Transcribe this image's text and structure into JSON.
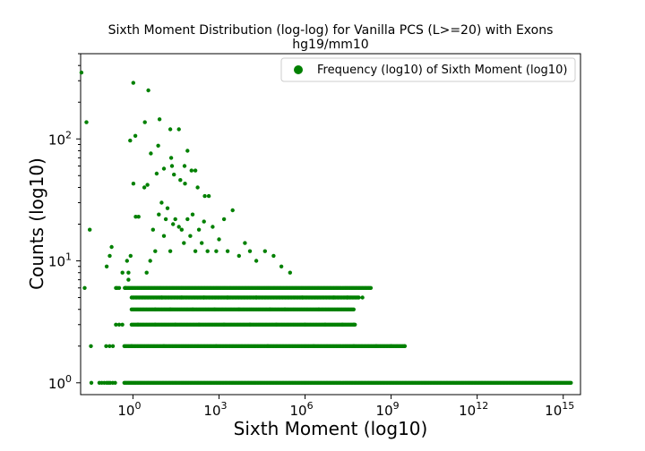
{
  "chart_data": {
    "type": "scatter",
    "title_line1": "Sixth Moment Distribution (log-log) for Vanilla PCS (L>=20) with Exons",
    "title_line2": "hg19/mm10",
    "xlabel": "Sixth Moment (log10)",
    "ylabel": "Counts (log10)",
    "x_scale": "log",
    "y_scale": "log",
    "xlim": [
      0.015,
      4000000000000000.0
    ],
    "ylim": [
      0.8,
      500
    ],
    "grid": false,
    "legend": {
      "placement": "top-right",
      "label": "Frequency (log10) of Sixth Moment (log10)"
    },
    "color": "#008000",
    "x_ticks": [
      {
        "base": "10",
        "exp": "0",
        "value": 1
      },
      {
        "base": "10",
        "exp": "3",
        "value": 1000
      },
      {
        "base": "10",
        "exp": "6",
        "value": 1000000
      },
      {
        "base": "10",
        "exp": "9",
        "value": 1000000000
      },
      {
        "base": "10",
        "exp": "12",
        "value": 1000000000000
      },
      {
        "base": "10",
        "exp": "15",
        "value": 1000000000000000
      }
    ],
    "y_ticks": [
      {
        "base": "10",
        "exp": "0",
        "value": 1
      },
      {
        "base": "10",
        "exp": "1",
        "value": 10
      },
      {
        "base": "10",
        "exp": "2",
        "value": 100
      }
    ],
    "series": [
      {
        "name": "Frequency (log10) of Sixth Moment (log10)",
        "points": [
          [
            0.016,
            350
          ],
          [
            0.0239,
            137
          ],
          [
            0.0207,
            6
          ],
          [
            0.0312,
            18
          ],
          [
            0.0342,
            2
          ],
          [
            0.0356,
            1
          ],
          [
            0.0674,
            1
          ],
          [
            0.0818,
            1
          ],
          [
            0.1,
            1
          ],
          [
            0.1217,
            1
          ],
          [
            0.14,
            1
          ],
          [
            0.1612,
            1
          ],
          [
            0.1962,
            1
          ],
          [
            0.2389,
            1
          ],
          [
            0.1162,
            2
          ],
          [
            0.1525,
            2
          ],
          [
            0.2,
            2
          ],
          [
            0.2541,
            3
          ],
          [
            0.3302,
            3
          ],
          [
            0.4288,
            3
          ],
          [
            0.1216,
            9
          ],
          [
            0.1558,
            11
          ],
          [
            0.18,
            13
          ],
          [
            0.2541,
            6
          ],
          [
            0.2848,
            6
          ],
          [
            0.33,
            6
          ],
          [
            0.52,
            6
          ],
          [
            0.43,
            8
          ],
          [
            0.62,
            10
          ],
          [
            0.7,
            7
          ],
          [
            0.83,
            11
          ],
          [
            1.25,
            23
          ],
          [
            1.57,
            23
          ],
          [
            2.5,
            40
          ],
          [
            0.7,
            8
          ],
          [
            0.554,
            6
          ],
          [
            0.8,
            97
          ],
          [
            1.03,
            288
          ],
          [
            1.04,
            43
          ],
          [
            1.21,
            106
          ],
          [
            3.44,
            250
          ],
          [
            2.6,
            137
          ],
          [
            3.2,
            42
          ],
          [
            4.2,
            76
          ],
          [
            8.44,
            145
          ],
          [
            6.7,
            52
          ],
          [
            7.6,
            88
          ],
          [
            12.0,
            57
          ],
          [
            20.0,
            120
          ],
          [
            21.5,
            70
          ],
          [
            23.0,
            60
          ],
          [
            27.0,
            51
          ],
          [
            40.0,
            120
          ],
          [
            45.0,
            46
          ],
          [
            63.0,
            60
          ],
          [
            65.0,
            43
          ],
          [
            80.0,
            80
          ],
          [
            110.0,
            55
          ],
          [
            150.0,
            55
          ],
          [
            180.0,
            40
          ],
          [
            320.0,
            34
          ],
          [
            440.0,
            34
          ],
          [
            3.0,
            8
          ],
          [
            4.0,
            10
          ],
          [
            5.0,
            18
          ],
          [
            6.0,
            12
          ],
          [
            8.0,
            24
          ],
          [
            10.0,
            30
          ],
          [
            12.0,
            16
          ],
          [
            14.0,
            22
          ],
          [
            16.0,
            27
          ],
          [
            20.0,
            12
          ],
          [
            25.0,
            20
          ],
          [
            30.0,
            22
          ],
          [
            40.0,
            19
          ],
          [
            50.0,
            18
          ],
          [
            60.0,
            14
          ],
          [
            80.0,
            22
          ],
          [
            100.0,
            16
          ],
          [
            120.0,
            24
          ],
          [
            150.0,
            12
          ],
          [
            200.0,
            18
          ],
          [
            250.0,
            14
          ],
          [
            300.0,
            21
          ],
          [
            400.0,
            12
          ],
          [
            600.0,
            19
          ],
          [
            800.0,
            12
          ],
          [
            1000.0,
            15
          ],
          [
            1500.0,
            22
          ],
          [
            2000.0,
            12
          ],
          [
            3000.0,
            26
          ],
          [
            5000.0,
            11
          ],
          [
            8000.0,
            14
          ],
          [
            12000.0,
            12
          ],
          [
            20000.0,
            10
          ],
          [
            40000.0,
            12
          ],
          [
            80000.0,
            11
          ],
          [
            150000.0,
            9
          ],
          [
            300000.0,
            8
          ],
          [
            6.0,
            4
          ],
          [
            10.0,
            5
          ],
          [
            20.0,
            4
          ],
          [
            50.0,
            5
          ],
          [
            120.0,
            4
          ],
          [
            300.0,
            5
          ],
          [
            700.0,
            4
          ],
          [
            2000.0,
            5
          ],
          [
            5000.0,
            4
          ],
          [
            20000.0,
            5
          ],
          [
            60000.0,
            4
          ],
          [
            200000.0,
            4
          ],
          [
            800000.0,
            5
          ],
          [
            3000000.0,
            4
          ],
          [
            10000000.0,
            5
          ],
          [
            30000000.0,
            5
          ],
          [
            100000000.0,
            5
          ],
          [
            1.5,
            3
          ],
          [
            6.0,
            3
          ],
          [
            30.0,
            3
          ],
          [
            200.0,
            3
          ],
          [
            1500.0,
            3
          ],
          [
            12000.0,
            3
          ],
          [
            100000.0,
            3
          ],
          [
            1000000.0,
            3
          ],
          [
            5000000.0,
            3
          ],
          [
            20000000.0,
            3
          ],
          [
            50000000.0,
            3
          ],
          [
            0.9,
            2
          ],
          [
            12.0,
            2
          ],
          [
            800.0,
            2
          ],
          [
            50000.0,
            2
          ],
          [
            2000000.0,
            2
          ],
          [
            50000000.0,
            2
          ],
          [
            300000000.0,
            2
          ],
          [
            1000000000.0,
            2
          ],
          [
            3000000000.0,
            2
          ]
        ]
      }
    ],
    "bands": [
      {
        "y": 6,
        "x_from": 0.55,
        "x_to": 200000000,
        "dense": true
      },
      {
        "y": 5,
        "x_from": 0.9,
        "x_to": 80000000,
        "dense": true
      },
      {
        "y": 4,
        "x_from": 0.9,
        "x_to": 50000000,
        "dense": true
      },
      {
        "y": 3,
        "x_from": 0.9,
        "x_to": 60000000,
        "dense": true
      },
      {
        "y": 2,
        "x_from": 0.5,
        "x_to": 3000000000,
        "dense": true
      },
      {
        "y": 1,
        "x_from": 0.5,
        "x_to": 2000000000000000,
        "dense": true
      }
    ]
  }
}
